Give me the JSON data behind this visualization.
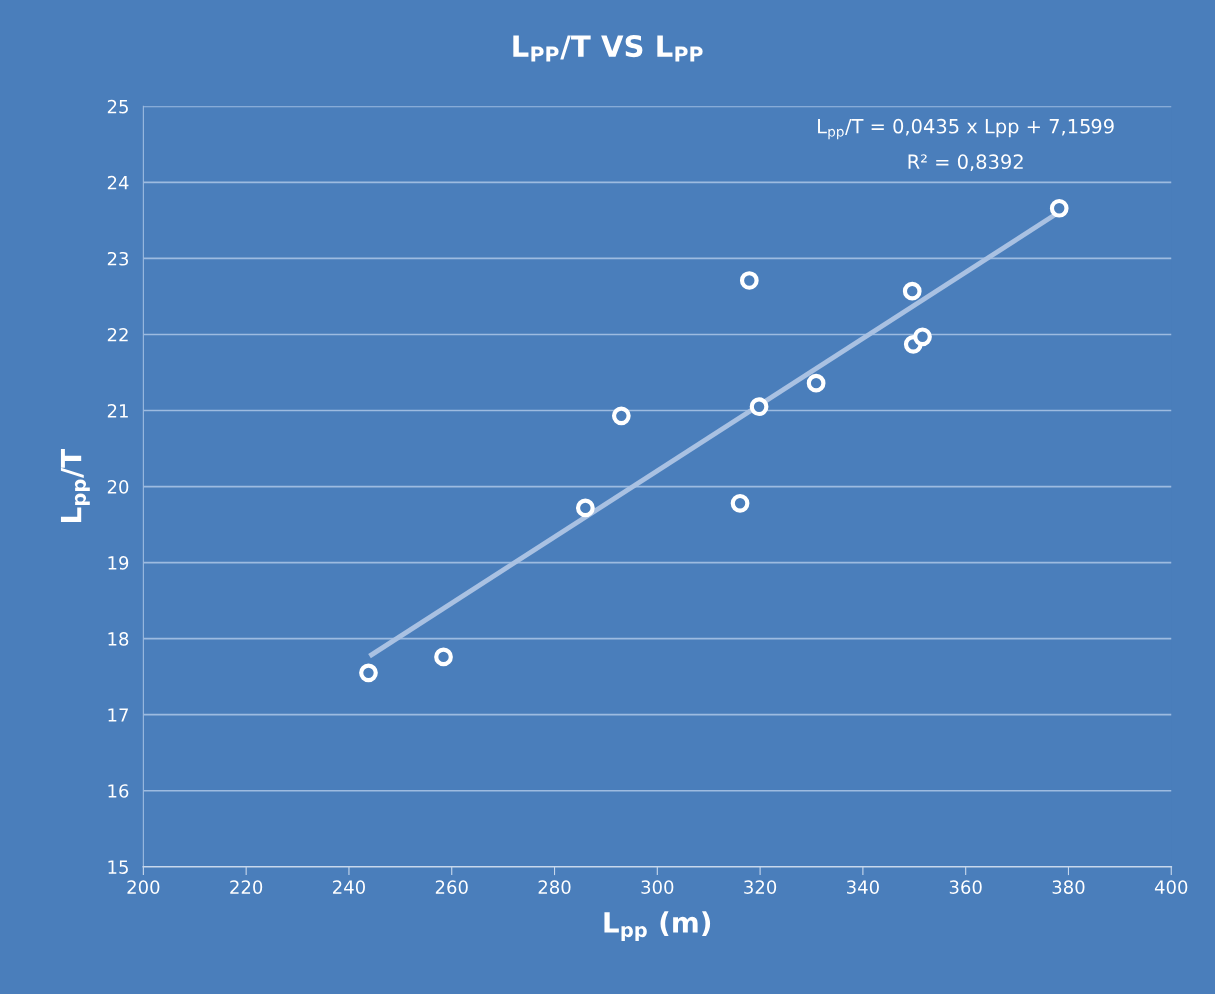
{
  "chart_data": {
    "type": "scatter",
    "title": "L$_{PP}$/T VS L$_{PP}$",
    "xlabel": "L$_{pp}$ (m)",
    "ylabel": "L$_{pp}$/T",
    "annotations": [
      "L$_{pp}$/T = 0,0435 x Lpp + 7,1599",
      "R² = 0,8392"
    ],
    "series": [
      {
        "color": "#ffffff",
        "marker": "circle",
        "x": [
          243.8,
          258.4,
          286.0,
          293.0,
          316.1,
          317.9,
          319.8,
          330.9,
          349.6,
          349.8,
          351.6,
          378.2
        ],
        "values": [
          17.55,
          17.76,
          19.72,
          20.93,
          19.78,
          22.71,
          21.05,
          21.36,
          22.57,
          21.87,
          21.97,
          23.66
        ]
      },
      {
        "type": "line",
        "color": "#a9c1e2",
        "x": [
          244,
          378.2
        ],
        "values": [
          17.77,
          23.61
        ]
      }
    ],
    "xlim": [
      200,
      400
    ],
    "xticks": [
      200,
      220,
      240,
      260,
      280,
      300,
      320,
      340,
      360,
      380,
      400
    ],
    "ylim": [
      15,
      25
    ],
    "yticks": [
      15,
      16,
      17,
      18,
      19,
      20,
      21,
      22,
      23,
      24,
      25
    ],
    "grid": "y"
  }
}
